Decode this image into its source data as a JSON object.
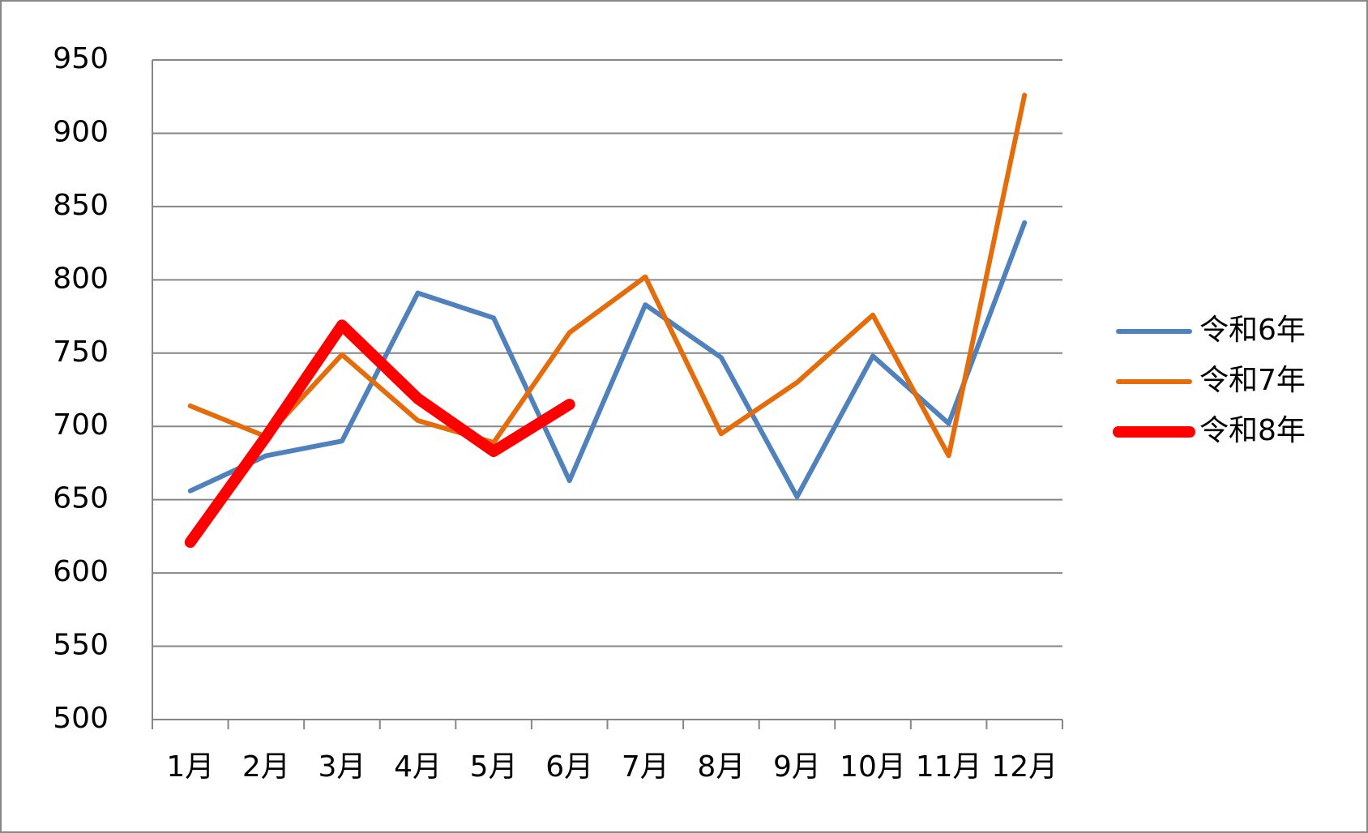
{
  "chart_data": {
    "type": "line",
    "categories": [
      "1月",
      "2月",
      "3月",
      "4月",
      "5月",
      "6月",
      "7月",
      "8月",
      "9月",
      "10月",
      "11月",
      "12月"
    ],
    "series": [
      {
        "name": "令和6年",
        "color": "#4f81bd",
        "width": 6,
        "values": [
          656,
          680,
          690,
          791,
          774,
          663,
          783,
          747,
          652,
          748,
          702,
          839
        ]
      },
      {
        "name": "令和7年",
        "color": "#e46c0a",
        "width": 6,
        "values": [
          714,
          693,
          749,
          704,
          689,
          764,
          802,
          695,
          730,
          776,
          680,
          926
        ]
      },
      {
        "name": "令和8年",
        "color": "#ff0000",
        "width": 14,
        "values": [
          621,
          693,
          769,
          719,
          683,
          715,
          null,
          null,
          null,
          null,
          null,
          null
        ]
      }
    ],
    "ylim": [
      500,
      950
    ],
    "yticks": [
      500,
      550,
      600,
      650,
      700,
      750,
      800,
      850,
      900,
      950
    ],
    "grid": true,
    "legend": "right"
  }
}
